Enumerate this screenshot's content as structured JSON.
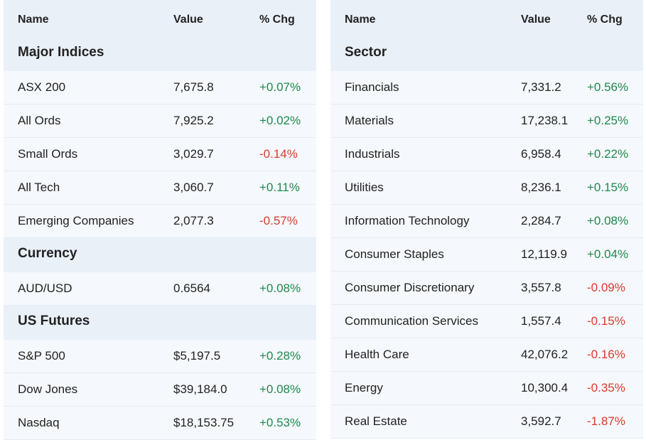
{
  "panels": [
    {
      "columns": [
        "Name",
        "Value",
        "% Chg"
      ],
      "sections": [
        {
          "title": "Major Indices",
          "rows": [
            [
              "ASX 200",
              "7,675.8",
              "+0.07%"
            ],
            [
              "All Ords",
              "7,925.2",
              "+0.02%"
            ],
            [
              "Small Ords",
              "3,029.7",
              "-0.14%"
            ],
            [
              "All Tech",
              "3,060.7",
              "+0.11%"
            ],
            [
              "Emerging Companies",
              "2,077.3",
              "-0.57%"
            ]
          ]
        },
        {
          "title": "Currency",
          "rows": [
            [
              "AUD/USD",
              "0.6564",
              "+0.08%"
            ]
          ]
        },
        {
          "title": "US Futures",
          "rows": [
            [
              "S&P 500",
              "$5,197.5",
              "+0.28%"
            ],
            [
              "Dow Jones",
              "$39,184.0",
              "+0.08%"
            ],
            [
              "Nasdaq",
              "$18,153.75",
              "+0.53%"
            ]
          ]
        }
      ]
    },
    {
      "columns": [
        "Name",
        "Value",
        "% Chg"
      ],
      "sections": [
        {
          "title": "Sector",
          "rows": [
            [
              "Financials",
              "7,331.2",
              "+0.56%"
            ],
            [
              "Materials",
              "17,238.1",
              "+0.25%"
            ],
            [
              "Industrials",
              "6,958.4",
              "+0.22%"
            ],
            [
              "Utilities",
              "8,236.1",
              "+0.15%"
            ],
            [
              "Information Technology",
              "2,284.7",
              "+0.08%"
            ],
            [
              "Consumer Staples",
              "12,119.9",
              "+0.04%"
            ],
            [
              "Consumer Discretionary",
              "3,557.8",
              "-0.09%"
            ],
            [
              "Communication Services",
              "1,557.4",
              "-0.15%"
            ],
            [
              "Health Care",
              "42,076.2",
              "-0.16%"
            ],
            [
              "Energy",
              "10,300.4",
              "-0.35%"
            ],
            [
              "Real Estate",
              "3,592.7",
              "-1.87%"
            ]
          ]
        }
      ]
    }
  ]
}
